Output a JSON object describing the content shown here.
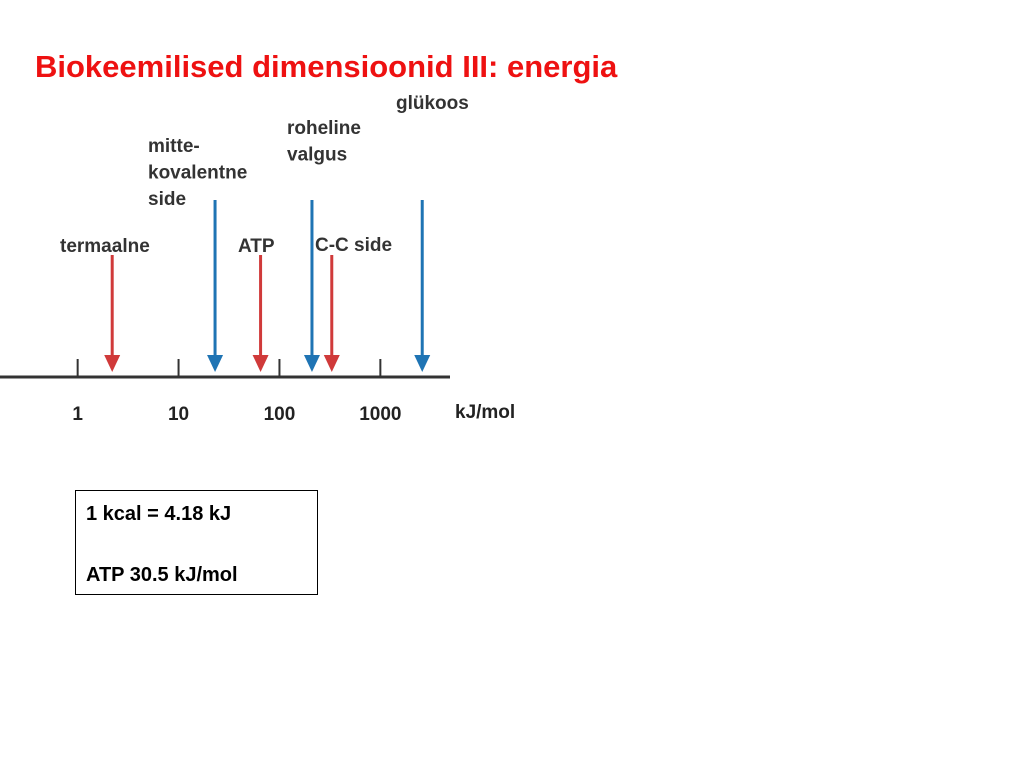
{
  "chart_data": {
    "type": "arrow",
    "title": "Biokeemilised dimensioonid III: energia",
    "xscale": "log",
    "xlim": [
      0.17,
      4900
    ],
    "xticks": [
      1,
      10,
      100,
      1000
    ],
    "xlabel": "kJ/mol",
    "categories": [
      [
        "termaalne"
      ],
      [
        "mitte-",
        "kovalentne",
        "side"
      ],
      [
        "ATP"
      ],
      [
        "roheline",
        "valgus"
      ],
      [
        "C-C side"
      ],
      [
        "glükoos"
      ]
    ],
    "values": [
      2.2,
      23,
      65,
      210,
      330,
      2600
    ],
    "colors": [
      "#d03a3a",
      "#1f74b4",
      "#d03a3a",
      "#1f74b4",
      "#d03a3a",
      "#1f74b4"
    ]
  },
  "note": {
    "lines": [
      "1 kcal = 4.18 kJ",
      "ATP  30.5 kJ/mol"
    ]
  }
}
